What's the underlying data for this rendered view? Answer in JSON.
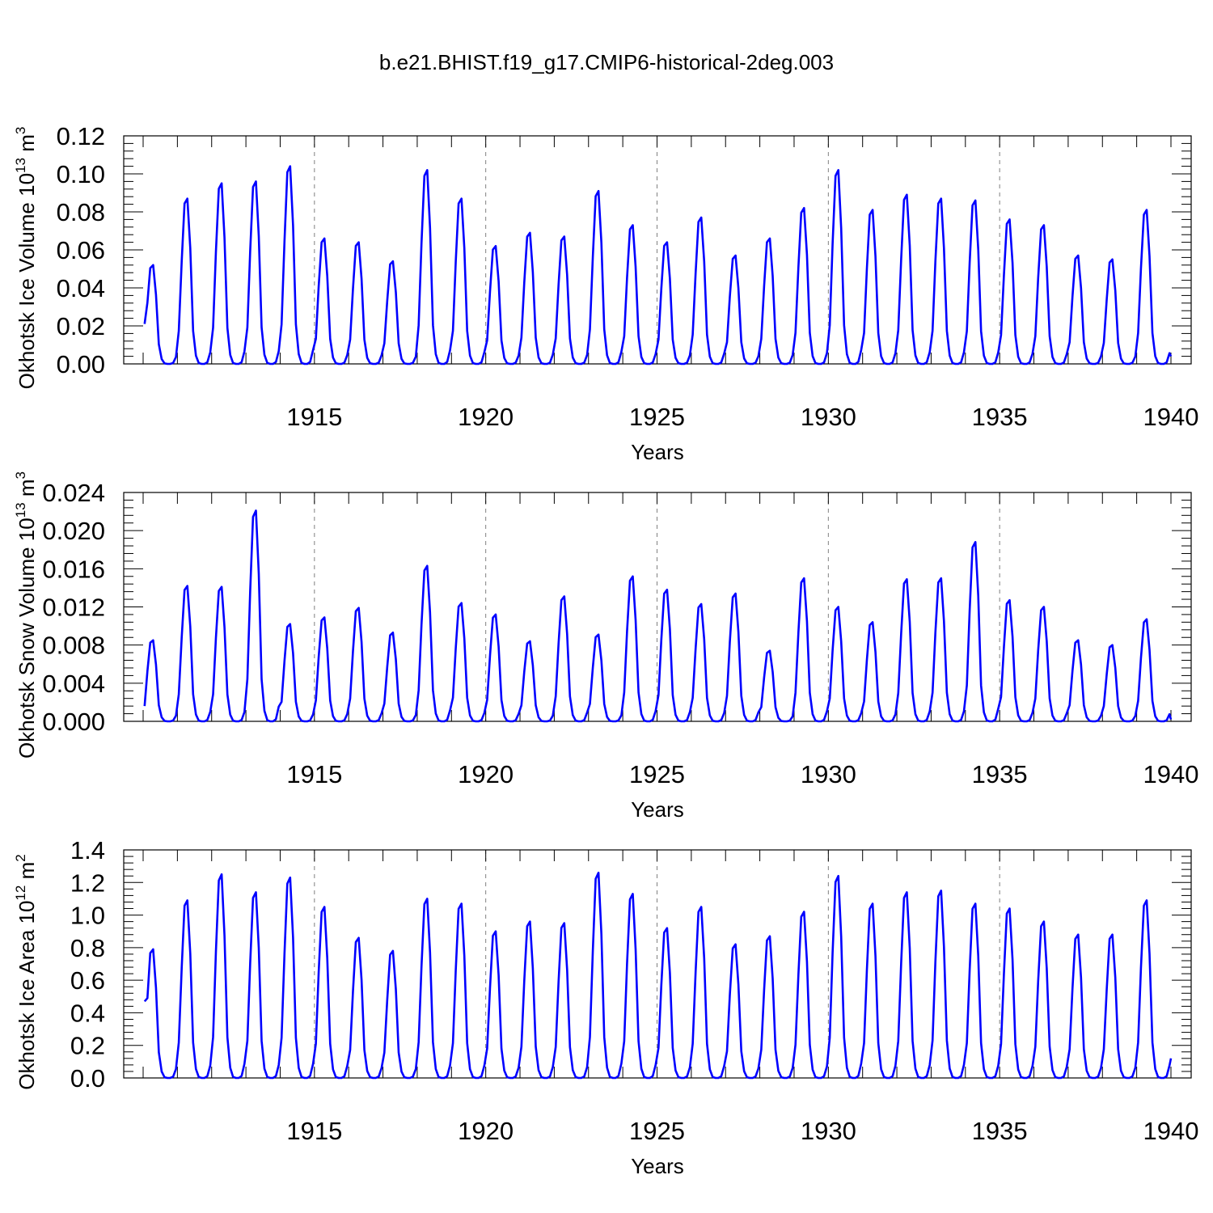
{
  "figure_title": "b.e21.BHIST.f19_g17.CMIP6-historical-2deg.003",
  "colors": {
    "series": "#0000ff",
    "axis": "#000000",
    "ref_line": "#808080"
  },
  "chart_data": [
    {
      "type": "line",
      "title": "",
      "xlabel": "Years",
      "ylabel": "Okhotsk Ice Volume 10",
      "ylabel_exp": "13",
      "ylabel_unit": " m",
      "ylabel_unit_exp": "3",
      "xlim": [
        1910,
        1940
      ],
      "ylim": [
        0,
        0.12
      ],
      "yticks": [
        "0.00",
        "0.02",
        "0.04",
        "0.06",
        "0.08",
        "0.10",
        "0.12"
      ],
      "xticks": [
        "1915",
        "1920",
        "1925",
        "1930",
        "1935",
        "1940"
      ],
      "grid": "dashed vertical at 1915, 1920, 1925, 1930, 1935",
      "series": [
        {
          "name": "Okhotsk Ice Volume",
          "year_start": 1910,
          "peaks": [
            0.052,
            0.087,
            0.095,
            0.096,
            0.104,
            0.066,
            0.064,
            0.054,
            0.102,
            0.087,
            0.062,
            0.069,
            0.067,
            0.091,
            0.073,
            0.064,
            0.077,
            0.057,
            0.066,
            0.082,
            0.102,
            0.081,
            0.089,
            0.087,
            0.086,
            0.076,
            0.073,
            0.057,
            0.055,
            0.081
          ],
          "start_value": 0.021,
          "end_value": 0.004
        }
      ]
    },
    {
      "type": "line",
      "title": "",
      "xlabel": "Years",
      "ylabel": "Okhotsk Snow Volume 10",
      "ylabel_exp": "13",
      "ylabel_unit": " m",
      "ylabel_unit_exp": "3",
      "xlim": [
        1910,
        1940
      ],
      "ylim": [
        0,
        0.024
      ],
      "yticks": [
        "0.000",
        "0.004",
        "0.008",
        "0.012",
        "0.016",
        "0.020",
        "0.024"
      ],
      "xticks": [
        "1915",
        "1920",
        "1925",
        "1930",
        "1935",
        "1940"
      ],
      "grid": "dashed vertical at 1915, 1920, 1925, 1930, 1935",
      "series": [
        {
          "name": "Okhotsk Snow Volume",
          "year_start": 1910,
          "peaks": [
            0.0085,
            0.0142,
            0.0141,
            0.0221,
            0.0102,
            0.0109,
            0.0119,
            0.0093,
            0.0163,
            0.0124,
            0.0112,
            0.0084,
            0.0131,
            0.0091,
            0.0152,
            0.0138,
            0.0123,
            0.0134,
            0.0074,
            0.015,
            0.012,
            0.0104,
            0.0149,
            0.015,
            0.0188,
            0.0127,
            0.012,
            0.0085,
            0.008,
            0.0107
          ],
          "start_value": 0.0016,
          "end_value": 0.0002
        }
      ]
    },
    {
      "type": "line",
      "title": "",
      "xlabel": "Years",
      "ylabel": "Okhotsk Ice Area 10",
      "ylabel_exp": "12",
      "ylabel_unit": " m",
      "ylabel_unit_exp": "2",
      "xlim": [
        1910,
        1940
      ],
      "ylim": [
        0,
        1.4
      ],
      "yticks": [
        "0.0",
        "0.2",
        "0.4",
        "0.6",
        "0.8",
        "1.0",
        "1.2",
        "1.4"
      ],
      "xticks": [
        "1915",
        "1920",
        "1925",
        "1930",
        "1935",
        "1940"
      ],
      "grid": "dashed vertical at 1915, 1920, 1925, 1930, 1935",
      "series": [
        {
          "name": "Okhotsk Ice Area",
          "year_start": 1910,
          "peaks": [
            0.79,
            1.09,
            1.25,
            1.14,
            1.23,
            1.05,
            0.86,
            0.78,
            1.1,
            1.07,
            0.9,
            0.96,
            0.95,
            1.26,
            1.13,
            0.92,
            1.05,
            0.82,
            0.87,
            1.02,
            1.24,
            1.07,
            1.14,
            1.15,
            1.07,
            1.04,
            0.96,
            0.88,
            0.88,
            1.09
          ],
          "start_value": 0.47,
          "end_value": 0.12
        }
      ]
    }
  ]
}
